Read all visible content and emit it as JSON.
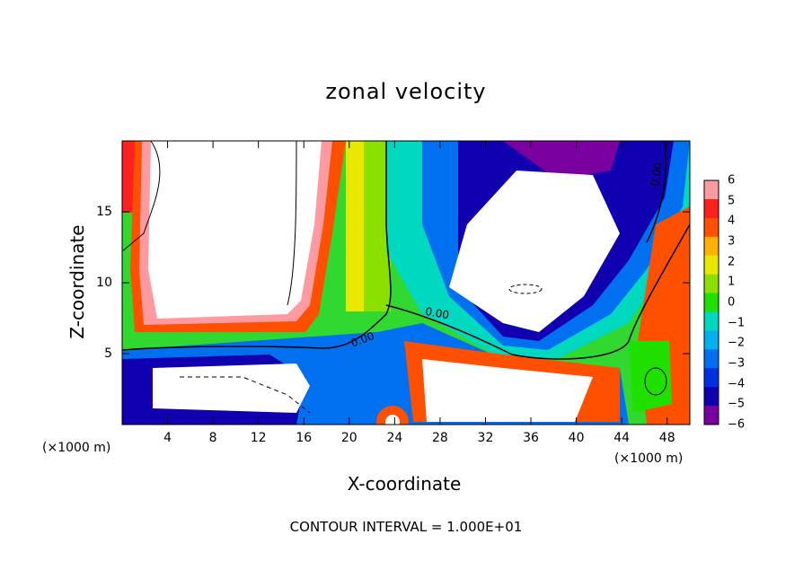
{
  "chart_data": {
    "type": "heatmap",
    "title": "zonal velocity",
    "xlabel": "X-coordinate",
    "ylabel": "Z-coordinate",
    "x_unit": "(×1000 m)",
    "footer": "CONTOUR INTERVAL = 1.000E+01",
    "xlim": [
      0,
      50
    ],
    "ylim": [
      0,
      20
    ],
    "x_ticks": [
      "4",
      "8",
      "12",
      "16",
      "20",
      "24",
      "28",
      "32",
      "36",
      "40",
      "44",
      "48"
    ],
    "y_ticks": [
      "5",
      "10",
      "15"
    ],
    "colorbar": {
      "ticks": [
        "6",
        "5",
        "4",
        "3",
        "2",
        "1",
        "0",
        "-1",
        "-2",
        "-3",
        "-4",
        "-5",
        "-6"
      ],
      "min": -6,
      "max": 6,
      "colors": [
        "#7a00a0",
        "#1000b0",
        "#0030e0",
        "#0070f0",
        "#00b0f0",
        "#00d8c0",
        "#20e000",
        "#8ce000",
        "#e8e800",
        "#ffb000",
        "#ff5000",
        "#ff2020",
        "#ff9aa0",
        "#ffffff"
      ]
    },
    "contour_labels": [
      "0.00",
      "0.00",
      "0.00"
    ]
  }
}
